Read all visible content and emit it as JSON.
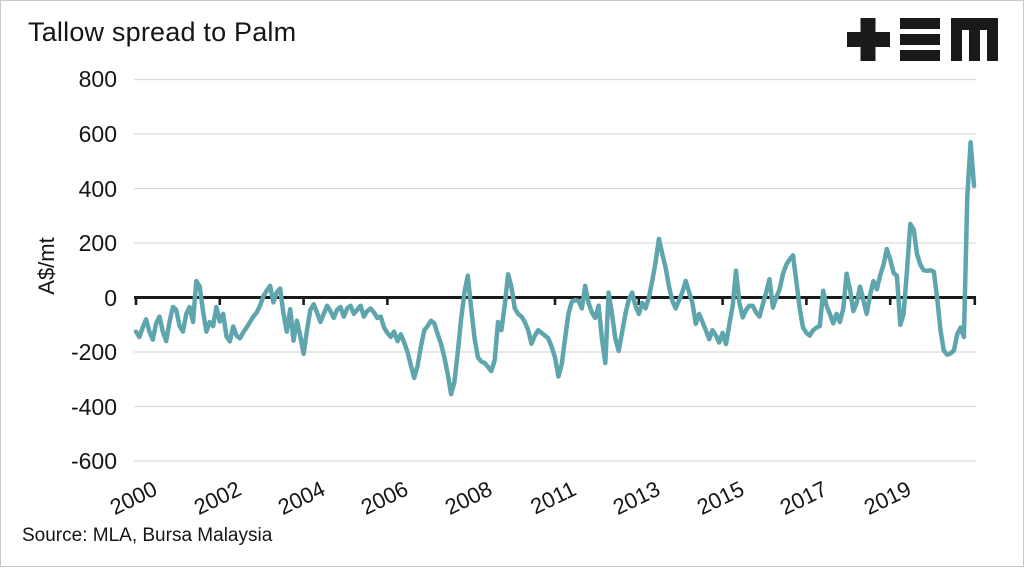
{
  "header": {
    "title": "Tallow spread to Palm",
    "logo_icon": "mla-logo"
  },
  "footer": {
    "source": "Source: MLA, Bursa Malaysia"
  },
  "chart_data": {
    "type": "line",
    "title": "Tallow spread to Palm",
    "ylabel": "A$/mt",
    "xlabel": "",
    "legend": "none",
    "grid": "horizontal-only",
    "zero_axis": true,
    "y_ticks": [
      800,
      600,
      400,
      200,
      0,
      -200,
      -400,
      -600
    ],
    "ylim": [
      -650,
      850
    ],
    "x_tick_labels": [
      "2000",
      "2002",
      "2004",
      "2006",
      "2008",
      "2011",
      "2013",
      "2015",
      "2017",
      "2019"
    ],
    "points_per_tick": 25,
    "colors": {
      "line": "#5fa5ad",
      "axis": "#1a1a1a",
      "grid": "#dadada",
      "text": "#161616",
      "background": "#ffffff"
    },
    "series": [
      {
        "name": "Tallow spread to Palm",
        "unit": "A$/mt",
        "values": [
          -125,
          -145,
          -110,
          -80,
          -125,
          -155,
          -95,
          -70,
          -125,
          -160,
          -90,
          -35,
          -45,
          -105,
          -125,
          -60,
          -35,
          -90,
          60,
          40,
          -50,
          -125,
          -90,
          -105,
          -35,
          -88,
          -60,
          -143,
          -161,
          -106,
          -140,
          -150,
          -128,
          -110,
          -90,
          -70,
          -55,
          -30,
          5,
          25,
          43,
          -18,
          20,
          33,
          -60,
          -125,
          -43,
          -158,
          -85,
          -140,
          -207,
          -120,
          -45,
          -25,
          -55,
          -90,
          -60,
          -30,
          -50,
          -75,
          -45,
          -35,
          -70,
          -40,
          -30,
          -60,
          -45,
          -30,
          -70,
          -50,
          -40,
          -55,
          -75,
          -70,
          -110,
          -130,
          -145,
          -125,
          -160,
          -135,
          -165,
          -200,
          -250,
          -295,
          -250,
          -180,
          -120,
          -105,
          -85,
          -95,
          -135,
          -170,
          -220,
          -280,
          -355,
          -310,
          -200,
          -80,
          20,
          80,
          -40,
          -150,
          -220,
          -235,
          -240,
          -255,
          -270,
          -230,
          -90,
          -120,
          -30,
          85,
          40,
          -40,
          -60,
          -70,
          -90,
          -120,
          -170,
          -140,
          -120,
          -130,
          -140,
          -150,
          -180,
          -220,
          -290,
          -245,
          -150,
          -60,
          -15,
          -10,
          -12,
          -40,
          43,
          -20,
          -55,
          -75,
          -30,
          -150,
          -240,
          18,
          -60,
          -150,
          -196,
          -130,
          -60,
          -10,
          18,
          -30,
          -60,
          -20,
          -40,
          0,
          60,
          130,
          215,
          160,
          110,
          40,
          -12,
          -40,
          -10,
          20,
          61,
          20,
          -20,
          -97,
          -60,
          -90,
          -120,
          -153,
          -120,
          -140,
          -165,
          -130,
          -171,
          -100,
          -30,
          98,
          -20,
          -73,
          -45,
          -30,
          -31,
          -55,
          -70,
          -25,
          20,
          67,
          -37,
          0,
          30,
          86,
          120,
          140,
          155,
          60,
          -40,
          -110,
          -130,
          -140,
          -120,
          -110,
          -105,
          25,
          -30,
          -60,
          -95,
          -60,
          -90,
          -40,
          87,
          30,
          -50,
          -20,
          40,
          -10,
          -60,
          10,
          60,
          30,
          80,
          120,
          178,
          140,
          90,
          80,
          -100,
          -60,
          100,
          270,
          250,
          160,
          120,
          100,
          98,
          100,
          95,
          0,
          -120,
          -195,
          -210,
          -205,
          -195,
          -135,
          -110,
          -145,
          370,
          570,
          410
        ]
      }
    ]
  }
}
